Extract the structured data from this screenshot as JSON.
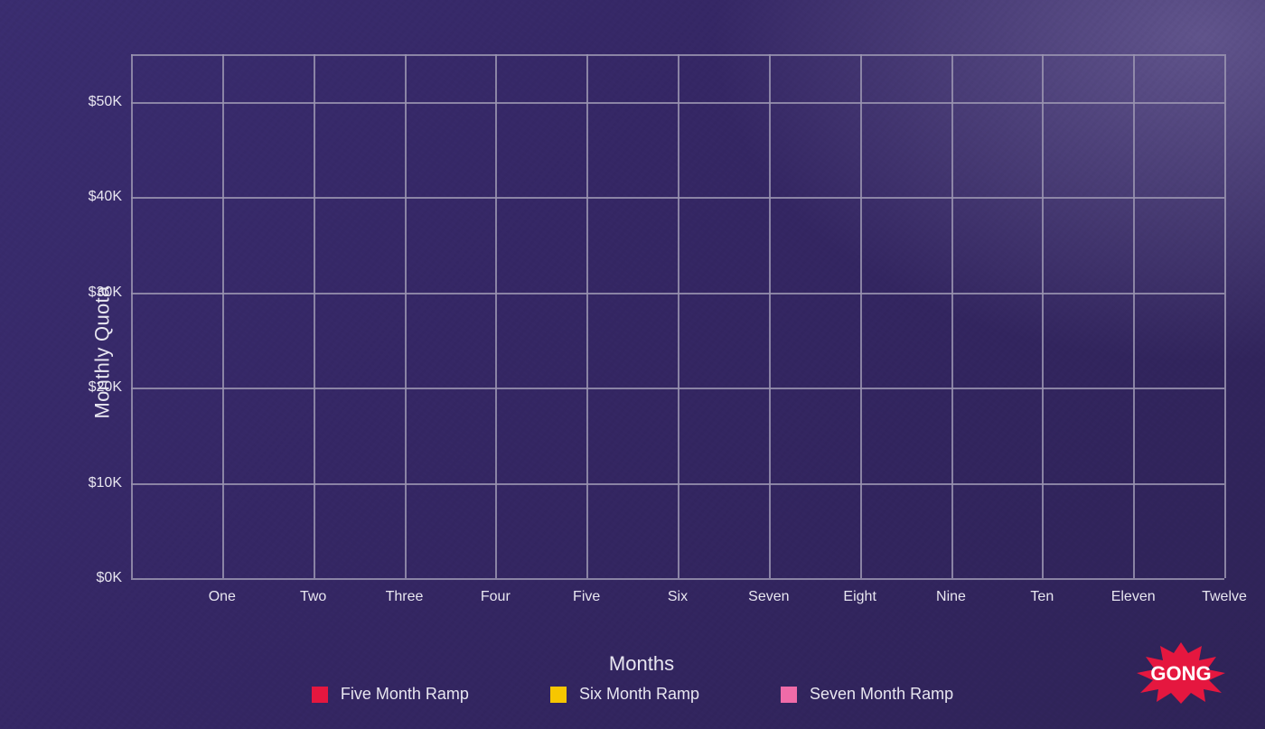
{
  "chart": {
    "type": "line",
    "y_axis": {
      "title": "Monthly Quota",
      "ticks": [
        "$0K",
        "$10K",
        "$20K",
        "$30K",
        "$40K",
        "$50K"
      ],
      "tick_values": [
        0,
        10,
        20,
        30,
        40,
        50
      ],
      "ylim": [
        0,
        55
      ],
      "title_fontsize": 22,
      "tick_fontsize": 16
    },
    "x_axis": {
      "title": "Months",
      "ticks": [
        "One",
        "Two",
        "Three",
        "Four",
        "Five",
        "Six",
        "Seven",
        "Eight",
        "Nine",
        "Ten",
        "Eleven",
        "Twelve"
      ],
      "title_fontsize": 22,
      "tick_fontsize": 16
    },
    "grid": {
      "color": "#9a94b0",
      "line_width": 2,
      "h_lines": 6,
      "v_lines": 13
    },
    "background": {
      "gradient_from": "#3a2d70",
      "gradient_to": "#2f2358",
      "glow_corner": "#b4aadc"
    },
    "text_color": "#e8e6f0",
    "series": [
      {
        "name": "Five Month Ramp",
        "color": "#e5173f",
        "values": []
      },
      {
        "name": "Six Month Ramp",
        "color": "#f7c600",
        "values": []
      },
      {
        "name": "Seven Month Ramp",
        "color": "#f06ba8",
        "values": []
      }
    ],
    "legend": {
      "swatch_size": 18,
      "fontsize": 18,
      "gap": 90
    }
  },
  "logo": {
    "text": "GONG",
    "burst_color": "#e5173f",
    "text_color": "#ffffff"
  }
}
